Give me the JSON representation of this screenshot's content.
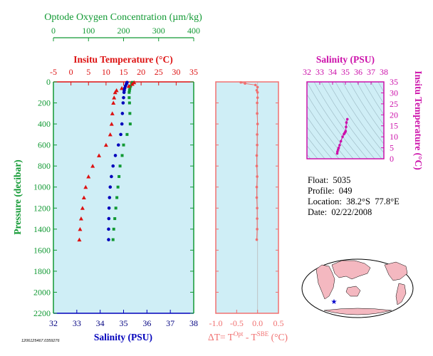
{
  "colors": {
    "background": "#cfeef6",
    "temperature": "#dd1111",
    "salinity": "#0000bb",
    "oxygen": "#119933",
    "delta_t": "#f07070",
    "ts_axis": "#cc11aa",
    "dark_axis": "#000080"
  },
  "info": {
    "float": "Float:  5035",
    "profile": "Profile:  049",
    "location": "Location:  38.2°S  77.8°E",
    "date": "Date:  02/22/2008"
  },
  "stamp": "1206125467.0359276",
  "map": {
    "icon": "star-marker-icon",
    "landmass_color": "#f4b8c0",
    "ocean_color": "#ffffff"
  },
  "chart_data": [
    {
      "type": "scatter",
      "name_id": "profile",
      "ylabel": "Pressure (decibar)",
      "ylim": [
        2200,
        0
      ],
      "yticks": [
        0,
        200,
        400,
        600,
        800,
        1000,
        1200,
        1400,
        1600,
        1800,
        2000,
        2200
      ],
      "axes": {
        "oxygen": {
          "label": "Optode Oxygen Concentration (µm/kg)",
          "lim": [
            0,
            400
          ],
          "ticks": [
            0,
            100,
            200,
            300,
            400
          ]
        },
        "temperature": {
          "label": "Insitu Temperature (°C)",
          "lim": [
            -5,
            35
          ],
          "ticks": [
            -5,
            0,
            5,
            10,
            15,
            20,
            25,
            30,
            35
          ]
        },
        "salinity": {
          "label": "Salinity (PSU)",
          "lim": [
            32,
            38
          ],
          "ticks": [
            32,
            33,
            34,
            35,
            36,
            37,
            38
          ]
        }
      },
      "series": {
        "oxygen": {
          "p": [
            5,
            20,
            40,
            60,
            80,
            100,
            150,
            200,
            300,
            400,
            500,
            600,
            700,
            800,
            900,
            1000,
            1100,
            1200,
            1300,
            1400,
            1500
          ],
          "values": [
            225,
            223,
            220,
            218,
            217,
            216,
            216,
            217,
            218,
            219,
            210,
            200,
            196,
            190,
            187,
            184,
            181,
            178,
            175,
            172,
            170
          ]
        },
        "temperature": {
          "p": [
            5,
            20,
            40,
            60,
            80,
            100,
            150,
            200,
            300,
            400,
            500,
            600,
            700,
            800,
            900,
            1000,
            1100,
            1200,
            1300,
            1400,
            1500
          ],
          "values": [
            18.0,
            17.5,
            16.5,
            14.5,
            13.0,
            12.6,
            12.3,
            12.1,
            11.8,
            11.6,
            11.2,
            10.0,
            8.0,
            6.2,
            5.0,
            4.2,
            3.7,
            3.3,
            2.9,
            2.6,
            2.4
          ]
        },
        "salinity": {
          "p": [
            5,
            20,
            40,
            60,
            80,
            100,
            150,
            200,
            300,
            400,
            500,
            600,
            700,
            800,
            900,
            1000,
            1100,
            1200,
            1300,
            1400,
            1500
          ],
          "values": [
            35.15,
            35.12,
            35.08,
            35.05,
            35.03,
            35.02,
            35.0,
            34.98,
            34.95,
            34.93,
            34.88,
            34.78,
            34.65,
            34.55,
            34.48,
            34.43,
            34.4,
            34.38,
            34.37,
            34.36,
            34.36
          ]
        }
      }
    },
    {
      "type": "scatter",
      "name_id": "delta_t",
      "xlabel": "ΔT= T^Opt - T^SBE (°C)",
      "xlim": [
        -1.0,
        0.5
      ],
      "xticks": [
        -1.0,
        -0.5,
        0.0,
        0.5
      ],
      "ylim": [
        2200,
        0
      ],
      "p": [
        5,
        15,
        30,
        50,
        80,
        100,
        150,
        200,
        300,
        400,
        500,
        600,
        700,
        800,
        900,
        1000,
        1100,
        1200,
        1300,
        1400,
        1500
      ],
      "values": [
        -0.4,
        -0.3,
        -0.05,
        0.0,
        -0.02,
        0.0,
        0.0,
        -0.01,
        -0.01,
        0.0,
        -0.01,
        -0.01,
        -0.02,
        -0.02,
        -0.01,
        -0.02,
        -0.02,
        -0.01,
        -0.01,
        -0.01,
        -0.02
      ]
    },
    {
      "type": "scatter",
      "name_id": "ts",
      "xlabel": "Salinity (PSU)",
      "ylabel": "Insitu Temperature (°C)",
      "xlim": [
        32,
        38
      ],
      "ylim": [
        0,
        35
      ],
      "xticks": [
        32,
        33,
        34,
        35,
        36,
        37,
        38
      ],
      "yticks": [
        0,
        5,
        10,
        15,
        20,
        25,
        30,
        35
      ],
      "salinity": [
        35.15,
        35.08,
        35.05,
        35.02,
        34.98,
        34.93,
        34.88,
        34.78,
        34.65,
        34.55,
        34.48,
        34.43,
        34.38,
        34.36
      ],
      "temperature": [
        18.0,
        16.5,
        14.5,
        12.6,
        12.1,
        11.6,
        11.2,
        10.0,
        8.0,
        6.2,
        5.0,
        4.2,
        3.3,
        2.4
      ]
    }
  ]
}
